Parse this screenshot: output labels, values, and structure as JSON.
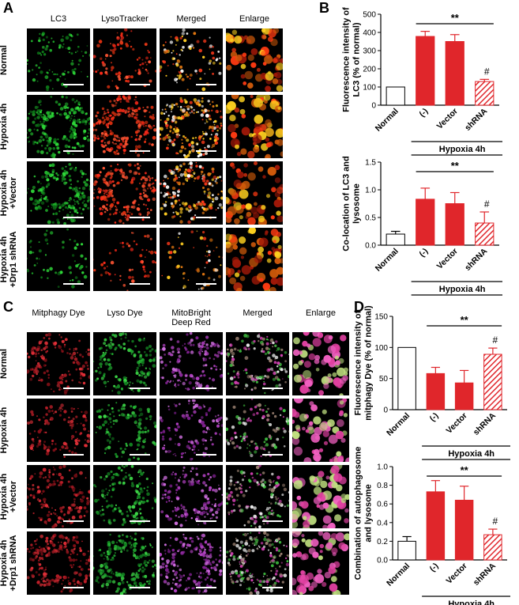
{
  "panels": {
    "A": {
      "letter": "A",
      "columns": [
        "LC3",
        "LysoTracker",
        "Merged",
        "Enlarge"
      ],
      "rows": [
        "Normal",
        "Hypoxia 4h",
        "Hypoxia 4h\n+Vector",
        "Hypoxia 4h\n+Drp1 shRNA"
      ]
    },
    "B": {
      "letter": "B"
    },
    "C": {
      "letter": "C",
      "columns": [
        "Mitphagy Dye",
        "Lyso Dye",
        "MitoBright\nDeep Red",
        "Merged",
        "Enlarge"
      ],
      "rows": [
        "Normal",
        "Hypoxia 4h",
        "Hypoxia 4h\n+Vector",
        "Hypoxia 4h\n+Drp1 shRNA"
      ]
    },
    "D": {
      "letter": "D"
    }
  },
  "colors": {
    "red_bar": "#e0262b",
    "normal_bar": "#ffffff",
    "axis": "#000000"
  },
  "chart_data": [
    {
      "id": "B1",
      "type": "bar",
      "categories": [
        "Normal",
        "(-)",
        "Vector",
        "shRNA"
      ],
      "group_label": "Hypoxia 4h",
      "values": [
        100,
        378,
        350,
        130
      ],
      "errors": [
        0,
        28,
        38,
        12
      ],
      "ylim": [
        0,
        500
      ],
      "yticks": [
        "0",
        "100",
        "200",
        "300",
        "400",
        "500"
      ],
      "ylabel": "Fluorescence intensity of\nLC3  (% of normal)",
      "significance": "**",
      "marker": "#",
      "hatched": [
        false,
        false,
        false,
        true
      ]
    },
    {
      "id": "B2",
      "type": "bar",
      "categories": [
        "Normal",
        "(-)",
        "Vector",
        "shRNA"
      ],
      "group_label": "Hypoxia 4h",
      "values": [
        0.2,
        0.83,
        0.75,
        0.4
      ],
      "errors": [
        0.05,
        0.2,
        0.2,
        0.2
      ],
      "ylim": [
        0,
        1.5
      ],
      "yticks": [
        "0.0",
        "0.5",
        "1.0",
        "1.5"
      ],
      "ylabel": "Co-location of  LC3 and\nlysosome",
      "significance": "**",
      "marker": "#",
      "hatched": [
        false,
        false,
        false,
        true
      ]
    },
    {
      "id": "D1",
      "type": "bar",
      "categories": [
        "Normal",
        "(-)",
        "Vector",
        "shRNA"
      ],
      "group_label": "Hypoxia 4h",
      "values": [
        100,
        58,
        43,
        89
      ],
      "errors": [
        0,
        10,
        20,
        10
      ],
      "ylim": [
        0,
        150
      ],
      "yticks": [
        "0",
        "50",
        "100",
        "150"
      ],
      "ylabel": "Fluorescence intensity of\nmitphagy Dye  (% of normal)",
      "significance": "**",
      "marker": "#",
      "hatched": [
        false,
        false,
        false,
        true
      ]
    },
    {
      "id": "D2",
      "type": "bar",
      "categories": [
        "Normal",
        "(-)",
        "Vector",
        "shRNA"
      ],
      "group_label": "Hypoxia 4h",
      "values": [
        0.2,
        0.73,
        0.64,
        0.27
      ],
      "errors": [
        0.05,
        0.12,
        0.15,
        0.06
      ],
      "ylim": [
        0,
        1.0
      ],
      "yticks": [
        "0.0",
        "0.2",
        "0.4",
        "0.6",
        "0.8",
        "1.0"
      ],
      "ylabel": "Combination of  autophagosome\nand lysosome",
      "significance": "**",
      "marker": "#",
      "hatched": [
        false,
        false,
        false,
        true
      ]
    }
  ]
}
